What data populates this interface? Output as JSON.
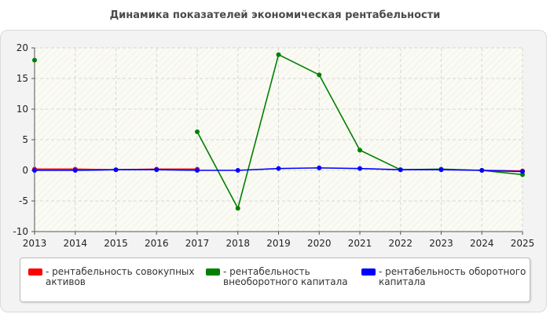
{
  "chart_data": {
    "type": "line",
    "title": "Динамика показателей экономическая рентабельности",
    "x": [
      "2013",
      "2014",
      "2015",
      "2016",
      "2017",
      "2018",
      "2019",
      "2020",
      "2021",
      "2022",
      "2023",
      "2024",
      "2025"
    ],
    "ylim": [
      -10,
      20
    ],
    "yticks": [
      "20",
      "15",
      "10",
      "5",
      "0",
      "-5",
      "-10"
    ],
    "grid": true,
    "legend_position": "bottom",
    "series": [
      {
        "name": "рентабельность совокупных активов",
        "color": "#ff0000",
        "values": [
          0.2,
          0.2,
          0.1,
          0.2,
          0.2,
          null,
          null,
          null,
          null,
          null,
          null,
          0.0,
          -0.1
        ]
      },
      {
        "name": "рентабельность внеоборотного капитала",
        "color": "#008000",
        "values": [
          18.0,
          null,
          null,
          null,
          6.3,
          -6.2,
          18.9,
          15.6,
          3.3,
          0.1,
          0.2,
          0.0,
          -0.7
        ]
      },
      {
        "name": "рентабельность оборотного капитала",
        "color": "#0000ff",
        "values": [
          0.0,
          0.0,
          0.1,
          0.1,
          0.0,
          0.0,
          0.3,
          0.4,
          0.3,
          0.1,
          0.1,
          0.0,
          -0.2
        ]
      }
    ]
  },
  "legend": [
    {
      "label_line1": "- рентабельность совокупных",
      "label_line2": "активов",
      "color": "#ff0000"
    },
    {
      "label_line1": "- рентабельность",
      "label_line2": "внеоборотного капитала",
      "color": "#008000"
    },
    {
      "label_line1": "- рентабельность оборотного",
      "label_line2": "капитала",
      "color": "#0000ff"
    }
  ]
}
